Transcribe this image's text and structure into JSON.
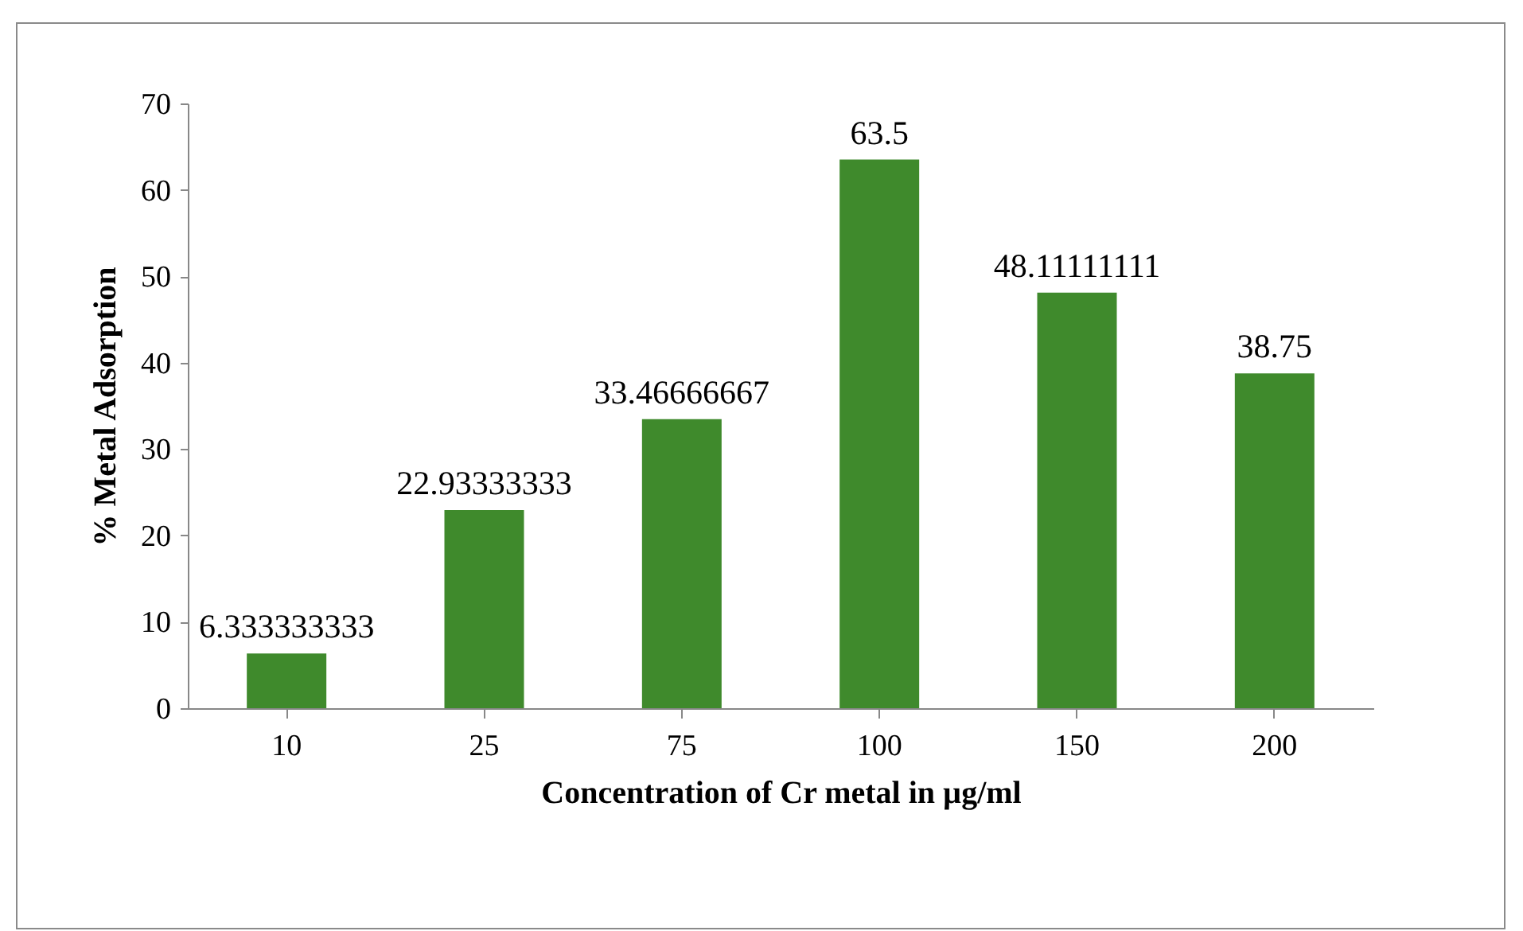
{
  "chart_data": {
    "type": "bar",
    "xlabel": "Concentration of Cr metal in µg/ml",
    "ylabel": "% Metal Adsorption",
    "categories": [
      "10",
      "25",
      "75",
      "100",
      "150",
      "200"
    ],
    "values": [
      6.333333333,
      22.93333333,
      33.46666667,
      63.5,
      48.11111111,
      38.75
    ],
    "color": "#3f8a2c",
    "ylim": [
      0,
      70
    ],
    "yticks": [
      0,
      10,
      20,
      30,
      40,
      50,
      60,
      70
    ],
    "data_labels": true,
    "grid": false
  }
}
